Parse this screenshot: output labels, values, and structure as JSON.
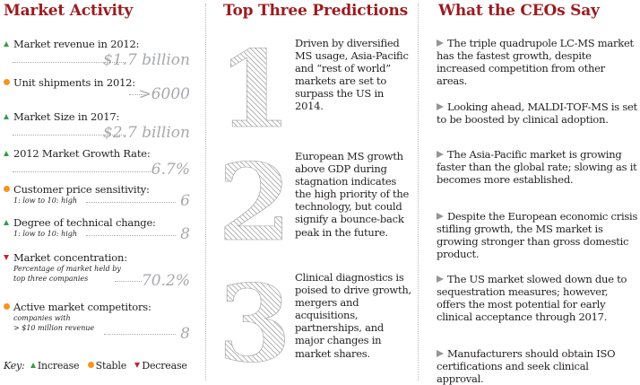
{
  "market": {
    "heading": "Market Activity",
    "items": [
      {
        "indicator": "up",
        "label": "Market revenue in 2012:",
        "subtext": [],
        "value": "$1.7 billion"
      },
      {
        "indicator": "stable",
        "label": "Unit shipments in 2012:",
        "subtext": [],
        "value": ">6000"
      },
      {
        "indicator": "up",
        "label": "Market Size in 2017:",
        "subtext": [],
        "value": "$2.7 billion"
      },
      {
        "indicator": "up",
        "label": "2012 Market Growth Rate:",
        "subtext": [],
        "value": "6.7%"
      },
      {
        "indicator": "stable",
        "label": "Customer price sensitivity:",
        "subtext": [
          "1: low to 10: high"
        ],
        "value": "6"
      },
      {
        "indicator": "up",
        "label": "Degree of technical change:",
        "subtext": [
          "1: low to 10: high"
        ],
        "value": "8"
      },
      {
        "indicator": "down",
        "label": "Market concentration:",
        "subtext": [
          "Percentage of market held by",
          "top three companies"
        ],
        "value": "70.2%"
      },
      {
        "indicator": "stable",
        "label": "Active market competitors:",
        "subtext": [
          "companies with",
          "> $10 million revenue"
        ],
        "value": "8"
      }
    ],
    "key": {
      "title": "Key:",
      "increase": "Increase",
      "stable": "Stable",
      "decrease": "Decrease"
    },
    "colors": {
      "increase": "#3a9b46",
      "stable": "#f7941d",
      "decrease": "#c1272d"
    }
  },
  "predictions": {
    "heading": "Top Three Predictions",
    "items": [
      {
        "number": "1",
        "text": "Driven by diversified MS usage, Asia-Pacific and “rest of world” markets are set to surpass the US in 2014."
      },
      {
        "number": "2",
        "text": "European MS growth above GDP during stagnation indicates the high priority of the technology, but could signify a bounce-back peak in the future."
      },
      {
        "number": "3",
        "text": "Clinical diagnostics is poised to drive growth, mergers and acquisitions, partnerships, and major changes in market shares."
      }
    ]
  },
  "ceos": {
    "heading": "What the CEOs Say",
    "quotes": [
      "The triple quadrupole LC-MS market has the fastest growth, despite increased competition from other areas.",
      "Looking ahead, MALDI-TOF-MS is set to be boosted by clinical adoption.",
      "The Asia-Pacific market is growing faster than the global rate; slowing as it becomes more established.",
      "Despite the European economic crisis stifling growth, the MS market is growing stronger than gross domestic product.",
      "The US market slowed down due to sequestration measures; however, offers the most potential for early clinical acceptance through 2017.",
      "Manufacturers should obtain ISO certifications and seek clinical approval."
    ]
  },
  "theme": {
    "heading_color": "#9b1b1f",
    "value_color": "#a7a9ac",
    "arrow_color": "#939598"
  }
}
